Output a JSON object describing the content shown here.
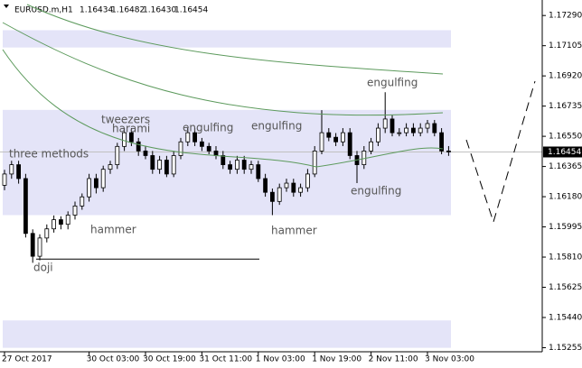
{
  "header": {
    "symbol": "EURUSD.m,H1",
    "quote": [
      "1.16434",
      "1.16482",
      "1.16430",
      "1.16454"
    ]
  },
  "chart_data": {
    "type": "candlestick",
    "categories": [
      "27 Oct 2017",
      null,
      null,
      null,
      null,
      null,
      null,
      null,
      null,
      null,
      null,
      null,
      "30 Oct 03:00",
      null,
      null,
      null,
      null,
      null,
      null,
      null,
      "30 Oct 19:00",
      null,
      null,
      null,
      null,
      null,
      null,
      null,
      "31 Oct 11:00",
      null,
      null,
      null,
      null,
      null,
      null,
      null,
      "1 Nov 03:00",
      null,
      null,
      null,
      null,
      null,
      null,
      null,
      "1 Nov 19:00",
      null,
      null,
      null,
      null,
      null,
      null,
      null,
      "2 Nov 11:00",
      null,
      null,
      null,
      null,
      null,
      null,
      null,
      "3 Nov 03:00",
      null,
      null,
      null
    ],
    "open": [
      1.1625,
      1.16319,
      1.16376,
      1.16291,
      1.15955,
      1.15815,
      1.15927,
      1.15983,
      1.16039,
      1.16011,
      1.16067,
      1.16123,
      1.16179,
      1.16291,
      1.16235,
      1.16348,
      1.16376,
      1.16488,
      1.16572,
      1.16516,
      1.1646,
      1.16432,
      1.16348,
      1.16404,
      1.16319,
      1.16432,
      1.16516,
      1.16572,
      1.16516,
      1.16488,
      1.1646,
      1.16432,
      1.16376,
      1.16348,
      1.16404,
      1.16348,
      1.16376,
      1.16291,
      1.16207,
      1.16151,
      1.16235,
      1.16263,
      1.16207,
      1.16235,
      1.16319,
      1.1646,
      1.16572,
      1.16544,
      1.16516,
      1.16572,
      1.16432,
      1.16376,
      1.1646,
      1.16516,
      1.166,
      1.16656,
      1.16572,
      1.16572,
      1.166,
      1.16572,
      1.166,
      1.16628,
      1.16572,
      1.1646
    ],
    "high": [
      1.16345,
      1.164,
      1.164,
      1.1632,
      1.1598,
      1.1595,
      1.1601,
      1.16065,
      1.1606,
      1.1609,
      1.1615,
      1.162,
      1.1632,
      1.1632,
      1.1637,
      1.164,
      1.1651,
      1.166,
      1.166,
      1.1654,
      1.1649,
      1.1646,
      1.1643,
      1.1643,
      1.1646,
      1.1654,
      1.166,
      1.166,
      1.1654,
      1.1651,
      1.1649,
      1.1646,
      1.164,
      1.1643,
      1.1643,
      1.164,
      1.164,
      1.1632,
      1.1623,
      1.1626,
      1.1629,
      1.1629,
      1.1626,
      1.1635,
      1.1649,
      1.1671,
      1.166,
      1.1657,
      1.166,
      1.166,
      1.1646,
      1.1649,
      1.1654,
      1.1663,
      1.1682,
      1.1668,
      1.166,
      1.1663,
      1.1663,
      1.1663,
      1.1665,
      1.1665,
      1.166,
      1.1649
    ],
    "low": [
      1.1622,
      1.1629,
      1.1626,
      1.1593,
      1.15775,
      1.1579,
      1.159,
      1.1596,
      1.1598,
      1.1598,
      1.1604,
      1.161,
      1.1615,
      1.162,
      1.1621,
      1.1632,
      1.1635,
      1.1646,
      1.1649,
      1.1643,
      1.1641,
      1.1632,
      1.1632,
      1.163,
      1.163,
      1.1641,
      1.1649,
      1.1649,
      1.1646,
      1.1644,
      1.1641,
      1.1635,
      1.1632,
      1.1632,
      1.1632,
      1.1632,
      1.1627,
      1.1618,
      1.16067,
      1.1613,
      1.1621,
      1.1618,
      1.1618,
      1.1621,
      1.163,
      1.1644,
      1.1652,
      1.1649,
      1.1649,
      1.1641,
      1.16263,
      1.1635,
      1.1644,
      1.1649,
      1.1657,
      1.1655,
      1.1655,
      1.1655,
      1.1655,
      1.1655,
      1.1657,
      1.1655,
      1.1644,
      1.1643
    ],
    "close": [
      1.16319,
      1.16376,
      1.16291,
      1.15955,
      1.15815,
      1.15927,
      1.15983,
      1.16039,
      1.16011,
      1.16067,
      1.16123,
      1.16179,
      1.16291,
      1.16235,
      1.16348,
      1.16376,
      1.16488,
      1.16572,
      1.16516,
      1.1646,
      1.16432,
      1.16348,
      1.16404,
      1.16319,
      1.16432,
      1.16516,
      1.16572,
      1.16516,
      1.16488,
      1.1646,
      1.16432,
      1.16376,
      1.16348,
      1.16404,
      1.16348,
      1.16376,
      1.16291,
      1.16207,
      1.16151,
      1.16235,
      1.16263,
      1.16207,
      1.16235,
      1.16319,
      1.1646,
      1.16572,
      1.16544,
      1.16516,
      1.16572,
      1.16432,
      1.16376,
      1.1646,
      1.16516,
      1.166,
      1.16656,
      1.16572,
      1.16572,
      1.166,
      1.16572,
      1.166,
      1.16628,
      1.16572,
      1.1646,
      1.16454
    ],
    "ylim": [
      1.1523,
      1.17385
    ],
    "yticks": [
      {
        "value": 1.1729,
        "label": "1.17290"
      },
      {
        "value": 1.17105,
        "label": "1.17105"
      },
      {
        "value": 1.1692,
        "label": "1.16920"
      },
      {
        "value": 1.16735,
        "label": "1.16735"
      },
      {
        "value": 1.1655,
        "label": "1.16550"
      },
      {
        "value": 1.16365,
        "label": "1.16365"
      },
      {
        "value": 1.1618,
        "label": "1.16180"
      },
      {
        "value": 1.15995,
        "label": "1.15995"
      },
      {
        "value": 1.1581,
        "label": "1.15810"
      },
      {
        "value": 1.15625,
        "label": "1.15625"
      },
      {
        "value": 1.1544,
        "label": "1.15440"
      },
      {
        "value": 1.15255,
        "label": "1.15255"
      }
    ],
    "zones": [
      [
        1.172,
        1.17094
      ],
      [
        1.16712,
        1.16067
      ],
      [
        1.15422,
        1.15254
      ]
    ],
    "price_line": 1.16454,
    "support_line": 1.15798,
    "annotations": [
      "tweezers",
      "harami",
      "engulfing",
      "engulfing",
      "engulfing",
      "three methods",
      "engulfing",
      "hammer",
      "hammer",
      "doji"
    ]
  }
}
